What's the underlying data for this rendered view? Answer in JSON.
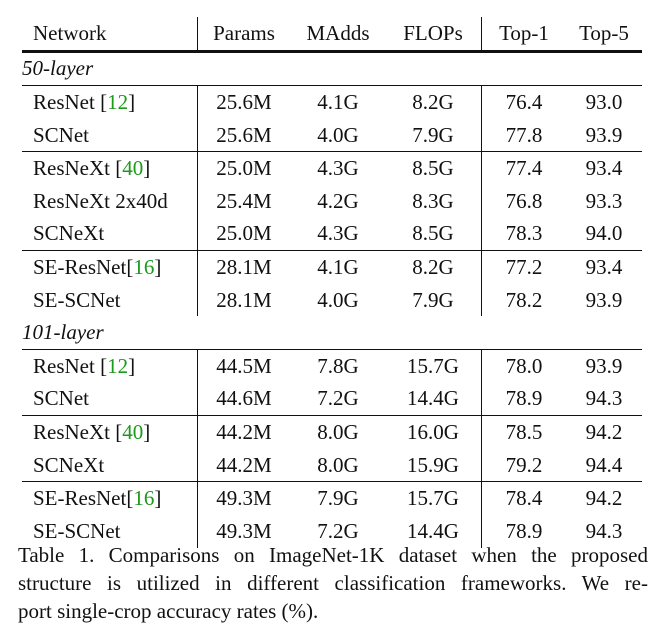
{
  "table": {
    "headers": [
      "Network",
      "Params",
      "MAdds",
      "FLOPs",
      "Top-1",
      "Top-5"
    ],
    "sections": [
      {
        "title": "50-layer",
        "groups": [
          [
            {
              "network": "ResNet ",
              "cite": "12",
              "values": [
                "25.6M",
                "4.1G",
                "8.2G",
                "76.4",
                "93.0"
              ]
            },
            {
              "network": "SCNet",
              "cite": "",
              "values": [
                "25.6M",
                "4.0G",
                "7.9G",
                "77.8",
                "93.9"
              ]
            }
          ],
          [
            {
              "network": "ResNeXt ",
              "cite": "40",
              "values": [
                "25.0M",
                "4.3G",
                "8.5G",
                "77.4",
                "93.4"
              ]
            },
            {
              "network": "ResNeXt 2x40d",
              "cite": "",
              "values": [
                "25.4M",
                "4.2G",
                "8.3G",
                "76.8",
                "93.3"
              ]
            },
            {
              "network": "SCNeXt",
              "cite": "",
              "values": [
                "25.0M",
                "4.3G",
                "8.5G",
                "78.3",
                "94.0"
              ]
            }
          ],
          [
            {
              "network": "SE-ResNet",
              "cite": "16",
              "values": [
                "28.1M",
                "4.1G",
                "8.2G",
                "77.2",
                "93.4"
              ]
            },
            {
              "network": "SE-SCNet",
              "cite": "",
              "values": [
                "28.1M",
                "4.0G",
                "7.9G",
                "78.2",
                "93.9"
              ]
            }
          ]
        ]
      },
      {
        "title": "101-layer",
        "groups": [
          [
            {
              "network": "ResNet ",
              "cite": "12",
              "values": [
                "44.5M",
                "7.8G",
                "15.7G",
                "78.0",
                "93.9"
              ]
            },
            {
              "network": "SCNet",
              "cite": "",
              "values": [
                "44.6M",
                "7.2G",
                "14.4G",
                "78.9",
                "94.3"
              ]
            }
          ],
          [
            {
              "network": "ResNeXt ",
              "cite": "40",
              "values": [
                "44.2M",
                "8.0G",
                "16.0G",
                "78.5",
                "94.2"
              ]
            },
            {
              "network": "SCNeXt",
              "cite": "",
              "values": [
                "44.2M",
                "8.0G",
                "15.9G",
                "79.2",
                "94.4"
              ]
            }
          ],
          [
            {
              "network": "SE-ResNet",
              "cite": "16",
              "values": [
                "49.3M",
                "7.9G",
                "15.7G",
                "78.4",
                "94.2"
              ]
            },
            {
              "network": "SE-SCNet",
              "cite": "",
              "values": [
                "49.3M",
                "7.2G",
                "14.4G",
                "78.9",
                "94.3"
              ]
            }
          ]
        ]
      }
    ]
  },
  "caption": {
    "lines": [
      "Table 1. Comparisons on ImageNet-1K dataset when the proposed",
      "structure is utilized in different classification frameworks. We re-",
      "port single-crop accuracy rates (%)."
    ]
  },
  "colors": {
    "citation": "#1a9a1a",
    "text": "#111111"
  }
}
